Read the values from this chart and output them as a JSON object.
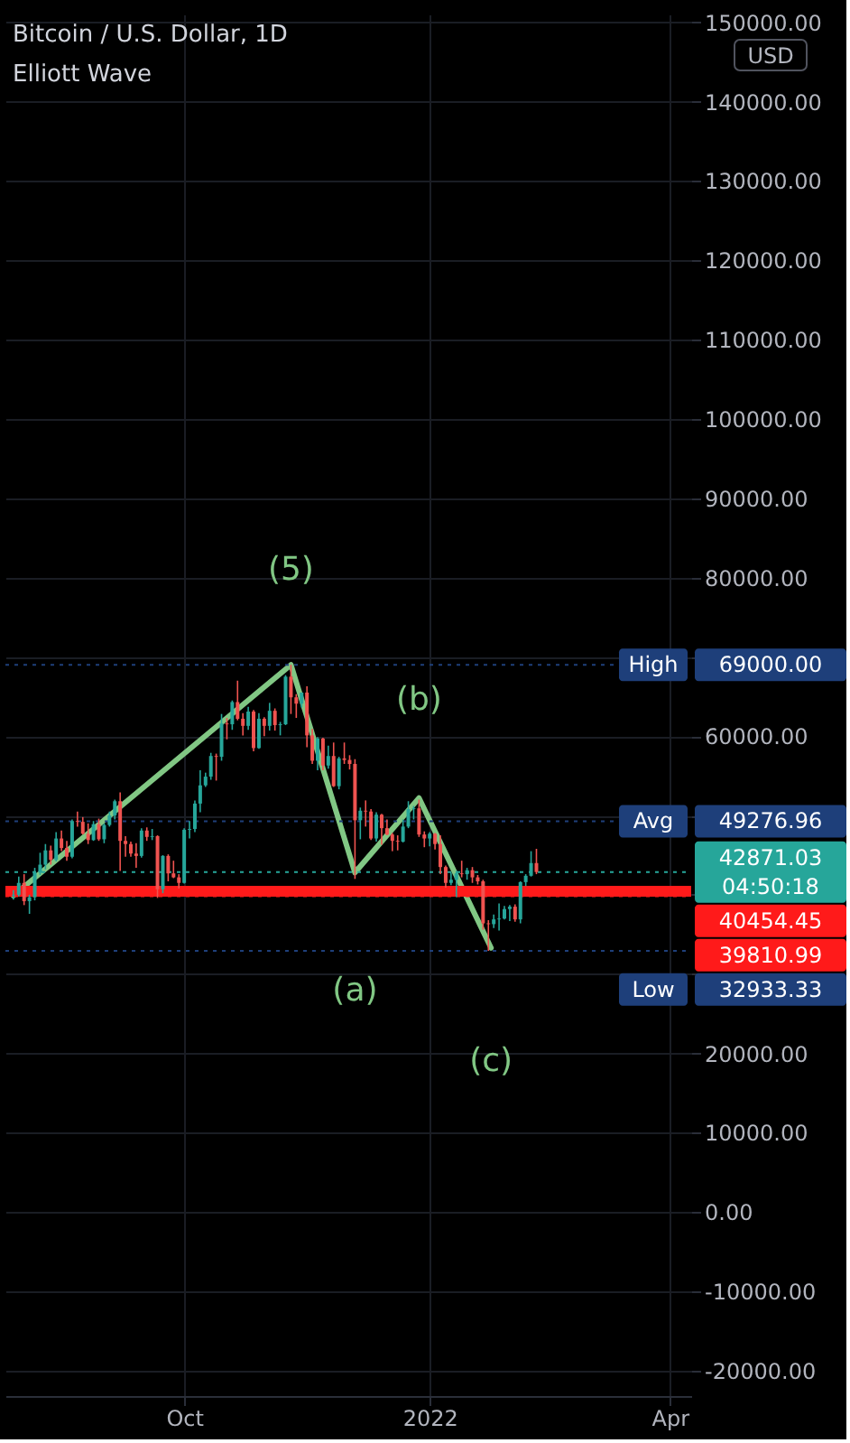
{
  "chart_data": {
    "type": "candlestick",
    "title": "Bitcoin / U.S. Dollar, 1D",
    "subtitle": "Elliott Wave",
    "x": [
      "2021-07-29",
      "2021-07-31",
      "2021-08-02",
      "2021-08-04",
      "2021-08-06",
      "2021-08-08",
      "2021-08-10",
      "2021-08-12",
      "2021-08-14",
      "2021-08-16",
      "2021-08-18",
      "2021-08-20",
      "2021-08-22",
      "2021-08-24",
      "2021-08-26",
      "2021-08-28",
      "2021-08-30",
      "2021-09-01",
      "2021-09-03",
      "2021-09-05",
      "2021-09-07",
      "2021-09-09",
      "2021-09-11",
      "2021-09-13",
      "2021-09-15",
      "2021-09-17",
      "2021-09-19",
      "2021-09-21",
      "2021-09-23",
      "2021-09-25",
      "2021-09-27",
      "2021-09-29",
      "2021-10-01",
      "2021-10-03",
      "2021-10-05",
      "2021-10-07",
      "2021-10-09",
      "2021-10-11",
      "2021-10-13",
      "2021-10-15",
      "2021-10-17",
      "2021-10-19",
      "2021-10-21",
      "2021-10-23",
      "2021-10-25",
      "2021-10-27",
      "2021-10-29",
      "2021-10-31",
      "2021-11-02",
      "2021-11-04",
      "2021-11-06",
      "2021-11-08",
      "2021-11-10",
      "2021-11-12",
      "2021-11-14",
      "2021-11-16",
      "2021-11-18",
      "2021-11-20",
      "2021-11-22",
      "2021-11-24",
      "2021-11-26",
      "2021-11-28",
      "2021-11-30",
      "2021-12-02",
      "2021-12-04",
      "2021-12-06",
      "2021-12-08",
      "2021-12-10",
      "2021-12-12",
      "2021-12-14",
      "2021-12-16",
      "2021-12-18",
      "2021-12-20",
      "2021-12-22",
      "2021-12-24",
      "2021-12-26",
      "2021-12-28",
      "2021-12-30",
      "2022-01-01",
      "2022-01-03",
      "2022-01-05",
      "2022-01-07",
      "2022-01-09",
      "2022-01-11",
      "2022-01-13",
      "2022-01-15",
      "2022-01-17",
      "2022-01-19",
      "2022-01-21",
      "2022-01-23",
      "2022-01-25",
      "2022-01-27",
      "2022-01-29",
      "2022-01-31",
      "2022-02-02",
      "2022-02-04",
      "2022-02-06",
      "2022-02-08",
      "2022-02-10"
    ],
    "ohlc": [
      [
        39900,
        40600,
        39400,
        40000
      ],
      [
        40000,
        42300,
        39800,
        41500
      ],
      [
        41500,
        42600,
        38700,
        39200
      ],
      [
        39200,
        40000,
        37600,
        39700
      ],
      [
        39700,
        43400,
        39300,
        42800
      ],
      [
        42800,
        45300,
        42500,
        43800
      ],
      [
        43800,
        46400,
        43200,
        45600
      ],
      [
        45600,
        46200,
        43800,
        44400
      ],
      [
        44400,
        47900,
        44200,
        47100
      ],
      [
        47100,
        48100,
        45500,
        45900
      ],
      [
        45900,
        46800,
        44300,
        44800
      ],
      [
        44800,
        49500,
        44600,
        49300
      ],
      [
        49300,
        50500,
        48600,
        49200
      ],
      [
        49200,
        49800,
        47600,
        47700
      ],
      [
        47700,
        49000,
        46400,
        46900
      ],
      [
        46900,
        49300,
        46800,
        48900
      ],
      [
        48900,
        49600,
        46800,
        47000
      ],
      [
        47000,
        49000,
        46500,
        48800
      ],
      [
        48800,
        50500,
        48600,
        50000
      ],
      [
        50000,
        52000,
        49500,
        51800
      ],
      [
        51800,
        52900,
        43000,
        46800
      ],
      [
        46800,
        47400,
        44800,
        46400
      ],
      [
        46400,
        46700,
        44800,
        45200
      ],
      [
        45200,
        46500,
        43400,
        44900
      ],
      [
        44900,
        48400,
        44700,
        48100
      ],
      [
        48100,
        48500,
        46800,
        47300
      ],
      [
        47300,
        48300,
        46900,
        47400
      ],
      [
        47400,
        47500,
        39600,
        40700
      ],
      [
        40700,
        45000,
        40200,
        44900
      ],
      [
        44900,
        45100,
        41700,
        42700
      ],
      [
        42700,
        44300,
        42100,
        42200
      ],
      [
        42200,
        42600,
        40800,
        41500
      ],
      [
        41500,
        48400,
        41400,
        48200
      ],
      [
        48200,
        49300,
        47100,
        48300
      ],
      [
        48300,
        51900,
        47900,
        51500
      ],
      [
        51500,
        55700,
        50400,
        53800
      ],
      [
        53800,
        55400,
        53600,
        54900
      ],
      [
        54900,
        57900,
        54500,
        57500
      ],
      [
        57500,
        57800,
        54400,
        57400
      ],
      [
        57400,
        62800,
        56900,
        61600
      ],
      [
        61600,
        62300,
        59600,
        61500
      ],
      [
        61500,
        64500,
        60800,
        64300
      ],
      [
        64300,
        67000,
        62000,
        62200
      ],
      [
        62200,
        62900,
        60100,
        61300
      ],
      [
        61300,
        63700,
        60800,
        63100
      ],
      [
        63100,
        63300,
        58100,
        58500
      ],
      [
        58500,
        62900,
        58400,
        62200
      ],
      [
        62200,
        62400,
        60000,
        61300
      ],
      [
        61300,
        64200,
        60700,
        63200
      ],
      [
        63200,
        63500,
        60700,
        61400
      ],
      [
        61400,
        61800,
        60100,
        61500
      ],
      [
        61500,
        67700,
        61400,
        67500
      ],
      [
        67500,
        69000,
        62800,
        64900
      ],
      [
        64900,
        65300,
        62300,
        64100
      ],
      [
        64100,
        65500,
        63600,
        65500
      ],
      [
        65500,
        66300,
        58600,
        60100
      ],
      [
        60100,
        60900,
        56500,
        56900
      ],
      [
        56900,
        59900,
        55700,
        59700
      ],
      [
        59700,
        59800,
        55700,
        56300
      ],
      [
        56300,
        58800,
        55900,
        57500
      ],
      [
        57500,
        59200,
        53600,
        53700
      ],
      [
        53700,
        57400,
        53300,
        57200
      ],
      [
        57200,
        59200,
        56500,
        57000
      ],
      [
        57000,
        57600,
        55800,
        56500
      ],
      [
        56500,
        57100,
        42000,
        49400
      ],
      [
        49400,
        51000,
        47000,
        50600
      ],
      [
        50600,
        51900,
        48600,
        50500
      ],
      [
        50500,
        50800,
        46900,
        47100
      ],
      [
        47100,
        50400,
        46700,
        50100
      ],
      [
        50100,
        50200,
        46300,
        48400
      ],
      [
        48400,
        49500,
        47500,
        47600
      ],
      [
        47600,
        47800,
        45500,
        46800
      ],
      [
        46800,
        47500,
        45600,
        46700
      ],
      [
        46700,
        49500,
        46600,
        48600
      ],
      [
        48600,
        51800,
        48400,
        50800
      ],
      [
        50800,
        51200,
        49500,
        50900
      ],
      [
        50900,
        52000,
        47300,
        47600
      ],
      [
        47600,
        48000,
        46000,
        47100
      ],
      [
        47100,
        47900,
        46100,
        47700
      ],
      [
        47700,
        47800,
        45700,
        46400
      ],
      [
        46400,
        47500,
        42600,
        43500
      ],
      [
        43500,
        43700,
        40900,
        41500
      ],
      [
        41500,
        42800,
        41200,
        41900
      ],
      [
        41900,
        43000,
        39700,
        42700
      ],
      [
        42700,
        44300,
        42200,
        42600
      ],
      [
        42600,
        43400,
        41900,
        43100
      ],
      [
        43100,
        43500,
        41500,
        42200
      ],
      [
        42200,
        42500,
        41300,
        41700
      ],
      [
        41700,
        41900,
        35600,
        36400
      ],
      [
        36400,
        36800,
        32933.33,
        36300
      ],
      [
        36300,
        37500,
        35800,
        36900
      ],
      [
        36900,
        38900,
        35500,
        37000
      ],
      [
        37000,
        38600,
        36900,
        38200
      ],
      [
        38200,
        38700,
        36700,
        38500
      ],
      [
        38500,
        38800,
        36600,
        36900
      ],
      [
        36900,
        41700,
        36400,
        41600
      ],
      [
        41600,
        42600,
        41100,
        42400
      ],
      [
        42400,
        45500,
        42300,
        44000
      ],
      [
        44000,
        45800,
        42600,
        42871.03
      ]
    ],
    "colors": [
      "#26a69a",
      "#26a69a",
      "#ef5350",
      "#26a69a",
      "#26a69a",
      "#26a69a",
      "#26a69a",
      "#ef5350",
      "#26a69a",
      "#ef5350",
      "#ef5350",
      "#26a69a",
      "#ef5350",
      "#ef5350",
      "#ef5350",
      "#26a69a",
      "#ef5350",
      "#26a69a",
      "#26a69a",
      "#26a69a",
      "#ef5350",
      "#ef5350",
      "#ef5350",
      "#ef5350",
      "#26a69a",
      "#ef5350",
      "#26a69a",
      "#ef5350",
      "#26a69a",
      "#ef5350",
      "#ef5350",
      "#ef5350",
      "#26a69a",
      "#26a69a",
      "#26a69a",
      "#26a69a",
      "#26a69a",
      "#26a69a",
      "#ef5350",
      "#26a69a",
      "#ef5350",
      "#26a69a",
      "#ef5350",
      "#ef5350",
      "#26a69a",
      "#ef5350",
      "#26a69a",
      "#ef5350",
      "#26a69a",
      "#ef5350",
      "#26a69a",
      "#26a69a",
      "#ef5350",
      "#ef5350",
      "#26a69a",
      "#ef5350",
      "#ef5350",
      "#26a69a",
      "#ef5350",
      "#26a69a",
      "#ef5350",
      "#26a69a",
      "#ef5350",
      "#ef5350",
      "#ef5350",
      "#26a69a",
      "#ef5350",
      "#ef5350",
      "#26a69a",
      "#ef5350",
      "#ef5350",
      "#ef5350",
      "#ef5350",
      "#26a69a",
      "#26a69a",
      "#26a69a",
      "#ef5350",
      "#ef5350",
      "#26a69a",
      "#ef5350",
      "#ef5350",
      "#ef5350",
      "#26a69a",
      "#26a69a",
      "#ef5350",
      "#26a69a",
      "#ef5350",
      "#ef5350",
      "#ef5350",
      "#ef5350",
      "#26a69a",
      "#26a69a",
      "#26a69a",
      "#26a69a",
      "#ef5350",
      "#26a69a",
      "#26a69a",
      "#26a69a",
      "#ef5350"
    ],
    "series": [
      {
        "type": "line",
        "color": "#81c784",
        "x": [
          "2021-07-29",
          "2021-11-10",
          "2021-12-04",
          "2021-12-28",
          "2022-01-24"
        ],
        "values": [
          39900,
          69000,
          42800,
          52200,
          33300
        ]
      }
    ],
    "xlim": [
      "2021-07-26",
      "2022-04-09"
    ],
    "xticks": [
      {
        "value": "2021-10-01",
        "label": "Oct"
      },
      {
        "value": "2022-01-01",
        "label": "2022"
      },
      {
        "value": "2022-04-01",
        "label": "Apr"
      }
    ],
    "ylim": [
      -23200,
      151000
    ],
    "yticks": [
      {
        "value": 150000,
        "label": "150000.00"
      },
      {
        "value": 140000,
        "label": "140000.00"
      },
      {
        "value": 130000,
        "label": "130000.00"
      },
      {
        "value": 120000,
        "label": "120000.00"
      },
      {
        "value": 110000,
        "label": "110000.00"
      },
      {
        "value": 100000,
        "label": "100000.00"
      },
      {
        "value": 90000,
        "label": "90000.00"
      },
      {
        "value": 80000,
        "label": "80000.00"
      },
      {
        "value": 70000,
        "label": null
      },
      {
        "value": 60000,
        "label": "60000.00"
      },
      {
        "value": 50000,
        "label": null
      },
      {
        "value": 40000,
        "label": null
      },
      {
        "value": 30000,
        "label": null
      },
      {
        "value": 20000,
        "label": "20000.00"
      },
      {
        "value": 10000,
        "label": "10000.00"
      },
      {
        "value": 0,
        "label": "0.00"
      },
      {
        "value": -10000,
        "label": "-10000.00"
      },
      {
        "value": -20000,
        "label": "-20000.00"
      }
    ],
    "ref_lines": [
      {
        "axis": "y",
        "value": 69000,
        "label": "69000.00",
        "color": "#1e3f7a",
        "line_style": "dotted"
      },
      {
        "axis": "y",
        "value": 49276.96,
        "label": "49276.96",
        "color": "#1e3f7a",
        "line_style": "dotted"
      },
      {
        "axis": "y",
        "value": 42871.03,
        "label": "42871.03",
        "color": "#26a69a",
        "line_style": "dotted"
      },
      {
        "axis": "y",
        "value": 40454.45,
        "label": "40454.45",
        "color": "#ff1a1a",
        "line_style": "solid"
      },
      {
        "axis": "y",
        "value": 39810.99,
        "label": "39810.99",
        "color": "#ff1a1a",
        "line_style": "dotted"
      },
      {
        "axis": "y",
        "value": 32933.33,
        "label": "32933.33",
        "color": "#1e3f7a",
        "line_style": "dotted"
      }
    ],
    "annotations": [
      "USD",
      "High",
      "Avg",
      "04:50:18",
      "Low",
      "(5)",
      "(b)",
      "(a)",
      "(c)"
    ],
    "grid": true
  }
}
